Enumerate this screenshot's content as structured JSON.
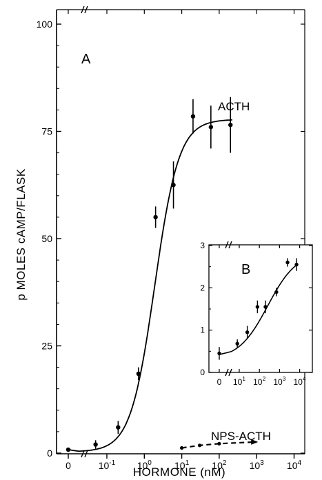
{
  "chart_data": [
    {
      "type": "scatter",
      "panel_label": "A",
      "title": "",
      "xlabel": "HORMONE (nM)",
      "ylabel": "p MOLES  cAMP/FLASK",
      "x_scale": "log (with zero point, axis break)",
      "ylim": [
        0,
        100
      ],
      "y_ticks": [
        "0",
        "25",
        "50",
        "75",
        "100"
      ],
      "x_ticks": [
        {
          "value": 0,
          "label": "0",
          "sup": ""
        },
        {
          "value": 0.1,
          "label": "10",
          "sup": "-1"
        },
        {
          "value": 1,
          "label": "10",
          "sup": "0"
        },
        {
          "value": 10,
          "label": "10",
          "sup": "1"
        },
        {
          "value": 100,
          "label": "10",
          "sup": "2"
        },
        {
          "value": 1000,
          "label": "10",
          "sup": "3"
        },
        {
          "value": 10000,
          "label": "10",
          "sup": "4"
        }
      ],
      "series": [
        {
          "name": "ACTH",
          "line_style": "solid curve",
          "points": [
            {
              "x": 0,
              "y": 0.8,
              "err": 0.5
            },
            {
              "x": 0.05,
              "y": 2,
              "err": 1
            },
            {
              "x": 0.2,
              "y": 6,
              "err": 1.5
            },
            {
              "x": 0.7,
              "y": 18.5,
              "err": 1.5
            },
            {
              "x": 2,
              "y": 55,
              "err": 2.5
            },
            {
              "x": 6,
              "y": 62.5,
              "err": 5.5
            },
            {
              "x": 20,
              "y": 78.5,
              "err": 4
            },
            {
              "x": 60,
              "y": 76,
              "err": 5
            },
            {
              "x": 200,
              "y": 76.5,
              "err": 6.5
            }
          ]
        },
        {
          "name": "NPS-ACTH",
          "line_style": "dashed",
          "points": [
            {
              "x": 10,
              "y": 1.2
            },
            {
              "x": 30,
              "y": 1.8
            },
            {
              "x": 100,
              "y": 2.2
            },
            {
              "x": 1000,
              "y": 2.6
            }
          ]
        }
      ]
    },
    {
      "type": "scatter",
      "panel_label": "B",
      "title": "",
      "xlabel": "",
      "ylabel": "",
      "x_scale": "log (with zero point, axis break)",
      "ylim": [
        0,
        3
      ],
      "y_ticks": [
        "0",
        "1",
        "2",
        "3"
      ],
      "x_ticks": [
        {
          "value": 0,
          "label": "0",
          "sup": ""
        },
        {
          "value": 10,
          "label": "10",
          "sup": "1"
        },
        {
          "value": 100,
          "label": "10",
          "sup": "2"
        },
        {
          "value": 1000,
          "label": "10",
          "sup": "3"
        },
        {
          "value": 10000,
          "label": "10",
          "sup": "4"
        }
      ],
      "series": [
        {
          "name": "",
          "line_style": "solid curve",
          "points": [
            {
              "x": 0,
              "y": 0.45,
              "err": 0.15
            },
            {
              "x": 8,
              "y": 0.68,
              "err": 0.1
            },
            {
              "x": 25,
              "y": 0.95,
              "err": 0.15
            },
            {
              "x": 80,
              "y": 1.55,
              "err": 0.15
            },
            {
              "x": 200,
              "y": 1.55,
              "err": 0.15
            },
            {
              "x": 700,
              "y": 1.9,
              "err": 0.1
            },
            {
              "x": 2500,
              "y": 2.6,
              "err": 0.1
            },
            {
              "x": 7000,
              "y": 2.55,
              "err": 0.15
            }
          ]
        }
      ]
    }
  ]
}
